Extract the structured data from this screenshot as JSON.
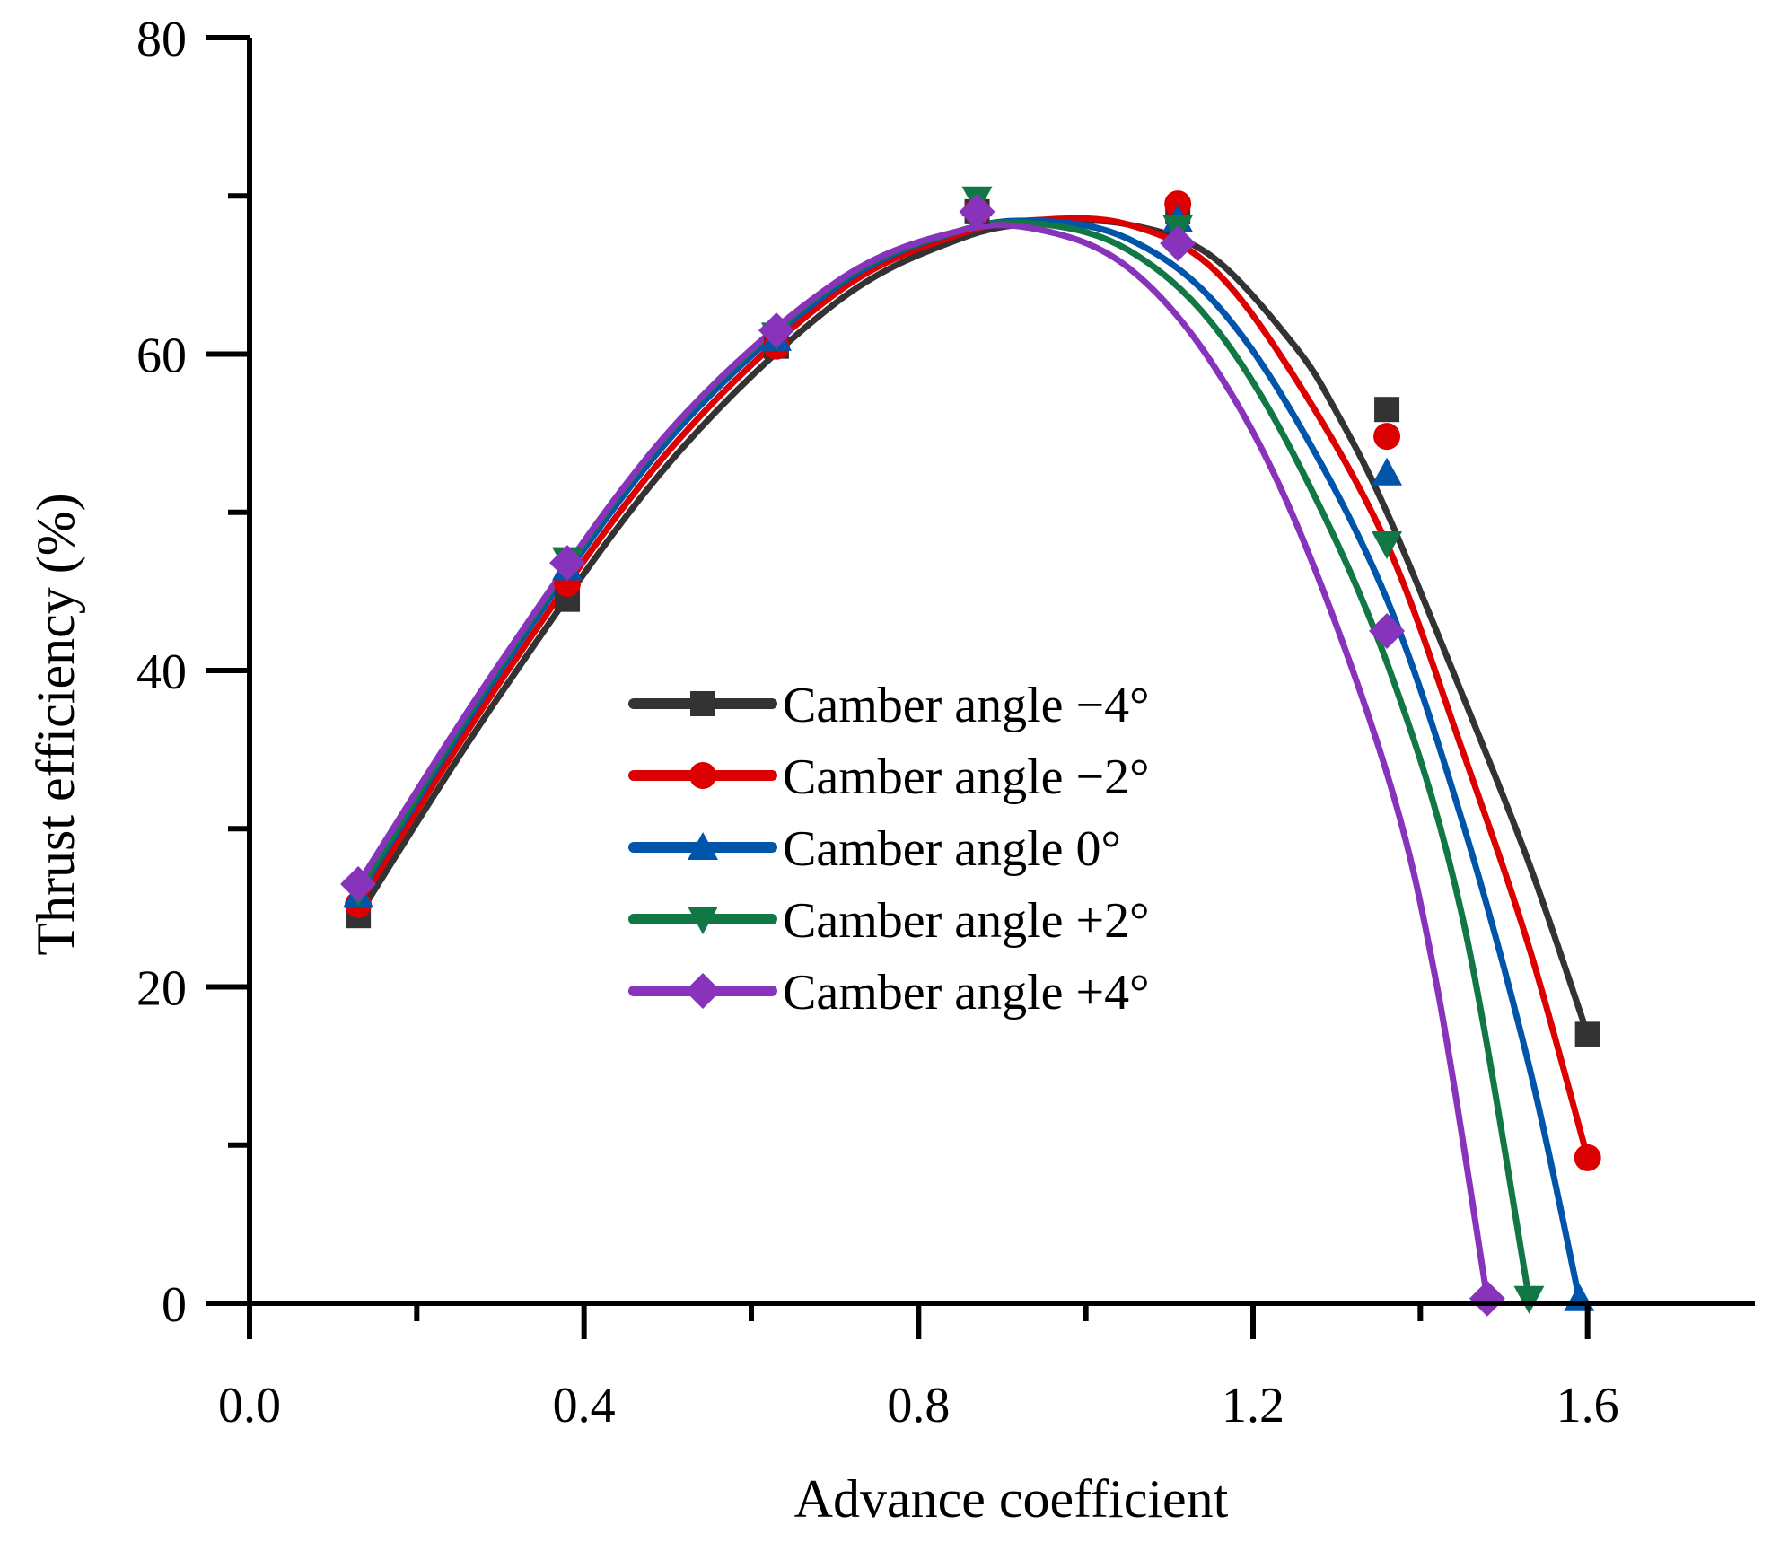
{
  "chart_data": {
    "type": "line",
    "xlabel": "Advance coefficient",
    "ylabel": "Thrust efficiency (%)",
    "xlim": [
      0.0,
      1.8
    ],
    "ylim": [
      0,
      80
    ],
    "x_ticks": [
      0.0,
      0.4,
      0.8,
      1.2,
      1.6
    ],
    "x_tick_labels": [
      "0.0",
      "0.4",
      "0.8",
      "1.2",
      "1.6"
    ],
    "y_ticks": [
      0,
      20,
      40,
      60,
      80
    ],
    "y_tick_labels": [
      "0",
      "20",
      "40",
      "60",
      "80"
    ],
    "grid": false,
    "legend_position": "center",
    "series": [
      {
        "name": "Camber angle −4°",
        "color": "#333333",
        "marker": "square",
        "points": [
          [
            0.13,
            24.5
          ],
          [
            0.38,
            44.5
          ],
          [
            0.63,
            60.5
          ],
          [
            0.87,
            69.0
          ],
          [
            1.11,
            69.0
          ],
          [
            1.36,
            56.5
          ],
          [
            1.6,
            17.0
          ]
        ],
        "curve": [
          [
            0.13,
            24.5
          ],
          [
            0.3,
            38.5
          ],
          [
            0.5,
            53.0
          ],
          [
            0.7,
            63.2
          ],
          [
            0.85,
            67.3
          ],
          [
            0.95,
            68.3
          ],
          [
            1.05,
            68.2
          ],
          [
            1.15,
            66.2
          ],
          [
            1.25,
            60.5
          ],
          [
            1.3,
            56.3
          ],
          [
            1.36,
            50.0
          ],
          [
            1.45,
            38.5
          ],
          [
            1.53,
            27.8
          ],
          [
            1.6,
            17.0
          ]
        ]
      },
      {
        "name": "Camber angle −2°",
        "color": "#dd0000",
        "marker": "circle",
        "points": [
          [
            0.13,
            25.2
          ],
          [
            0.38,
            45.5
          ],
          [
            0.63,
            60.5
          ],
          [
            0.87,
            69.0
          ],
          [
            1.11,
            69.5
          ],
          [
            1.36,
            54.8
          ],
          [
            1.6,
            9.2
          ]
        ],
        "curve": [
          [
            0.13,
            25.2
          ],
          [
            0.3,
            39.3
          ],
          [
            0.5,
            53.8
          ],
          [
            0.7,
            63.8
          ],
          [
            0.85,
            67.6
          ],
          [
            0.95,
            68.5
          ],
          [
            1.05,
            68.2
          ],
          [
            1.15,
            65.5
          ],
          [
            1.25,
            58.5
          ],
          [
            1.36,
            48.0
          ],
          [
            1.45,
            35.0
          ],
          [
            1.53,
            22.5
          ],
          [
            1.6,
            9.2
          ]
        ]
      },
      {
        "name": "Camber angle 0°",
        "color": "#0055aa",
        "marker": "triangle-up",
        "points": [
          [
            0.13,
            25.8
          ],
          [
            0.38,
            46.5
          ],
          [
            0.63,
            61.0
          ],
          [
            0.87,
            69.5
          ],
          [
            1.11,
            68.5
          ],
          [
            1.36,
            52.5
          ],
          [
            1.59,
            0.3
          ]
        ],
        "curve": [
          [
            0.13,
            25.8
          ],
          [
            0.3,
            40.0
          ],
          [
            0.5,
            54.5
          ],
          [
            0.7,
            64.2
          ],
          [
            0.85,
            67.8
          ],
          [
            0.95,
            68.4
          ],
          [
            1.05,
            67.3
          ],
          [
            1.15,
            63.5
          ],
          [
            1.25,
            56.0
          ],
          [
            1.36,
            44.5
          ],
          [
            1.45,
            30.5
          ],
          [
            1.53,
            15.0
          ],
          [
            1.59,
            0.3
          ]
        ]
      },
      {
        "name": "Camber angle +2°",
        "color": "#117744",
        "marker": "triangle-down",
        "points": [
          [
            0.13,
            26.0
          ],
          [
            0.38,
            47.0
          ],
          [
            0.63,
            61.2
          ],
          [
            0.87,
            69.8
          ],
          [
            1.11,
            68.0
          ],
          [
            1.36,
            48.0
          ],
          [
            1.53,
            0.3
          ]
        ],
        "curve": [
          [
            0.13,
            26.0
          ],
          [
            0.3,
            40.3
          ],
          [
            0.5,
            54.9
          ],
          [
            0.7,
            64.4
          ],
          [
            0.85,
            67.8
          ],
          [
            0.95,
            68.2
          ],
          [
            1.05,
            66.6
          ],
          [
            1.15,
            62.0
          ],
          [
            1.25,
            53.5
          ],
          [
            1.36,
            40.5
          ],
          [
            1.45,
            24.5
          ],
          [
            1.53,
            0.3
          ]
        ]
      },
      {
        "name": "Camber angle +4°",
        "color": "#8833bb",
        "marker": "diamond",
        "points": [
          [
            0.13,
            26.5
          ],
          [
            0.38,
            46.8
          ],
          [
            0.63,
            61.5
          ],
          [
            0.87,
            69.0
          ],
          [
            1.11,
            67.0
          ],
          [
            1.36,
            42.5
          ],
          [
            1.48,
            0.3
          ]
        ],
        "curve": [
          [
            0.13,
            26.5
          ],
          [
            0.3,
            40.5
          ],
          [
            0.5,
            55.0
          ],
          [
            0.7,
            64.5
          ],
          [
            0.85,
            67.8
          ],
          [
            0.95,
            67.8
          ],
          [
            1.05,
            65.5
          ],
          [
            1.15,
            59.5
          ],
          [
            1.25,
            49.5
          ],
          [
            1.36,
            33.5
          ],
          [
            1.42,
            20.0
          ],
          [
            1.48,
            0.3
          ]
        ]
      }
    ]
  }
}
